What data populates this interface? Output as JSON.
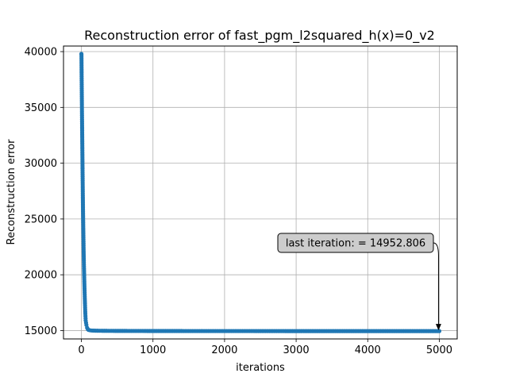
{
  "chart_data": {
    "type": "line",
    "title": "Reconstruction error of fast_pgm_l2squared_h(x)=0_v2",
    "xlabel": "iterations",
    "ylabel": "Reconstruction error",
    "xlim": [
      -250,
      5250
    ],
    "ylim": [
      14250,
      40500
    ],
    "xticks": [
      0,
      1000,
      2000,
      3000,
      4000,
      5000
    ],
    "yticks": [
      15000,
      20000,
      25000,
      30000,
      35000,
      40000
    ],
    "xtick_labels": [
      "0",
      "1000",
      "2000",
      "3000",
      "4000",
      "5000"
    ],
    "ytick_labels": [
      "15000",
      "20000",
      "25000",
      "30000",
      "35000",
      "40000"
    ],
    "grid": true,
    "series": [
      {
        "color": "#1f77b4",
        "marker": "circle",
        "x": [
          0,
          1,
          2,
          3,
          4,
          5,
          6,
          8,
          10,
          12,
          14,
          16,
          18,
          20,
          22,
          25,
          28,
          31,
          35,
          40,
          45,
          50,
          55,
          60,
          70,
          80,
          90,
          100,
          125,
          150,
          200,
          300,
          500,
          1000,
          1500,
          2000,
          2500,
          3000,
          3500,
          4000,
          4500,
          5000
        ],
        "values": [
          39800,
          39700,
          38900,
          38100,
          37400,
          36700,
          36000,
          34600,
          33400,
          32100,
          30800,
          29500,
          28300,
          27100,
          26000,
          24700,
          23500,
          22300,
          20900,
          19600,
          18400,
          17400,
          16500,
          15900,
          15500,
          15250,
          15120,
          15060,
          15020,
          15000,
          14990,
          14980,
          14970,
          14962,
          14958,
          14956,
          14955,
          14954,
          14953.5,
          14953.2,
          14953,
          14952.806
        ]
      }
    ],
    "annotation": {
      "text": "last iteration: = 14952.806",
      "x": 5000,
      "y": 14952.806
    }
  }
}
